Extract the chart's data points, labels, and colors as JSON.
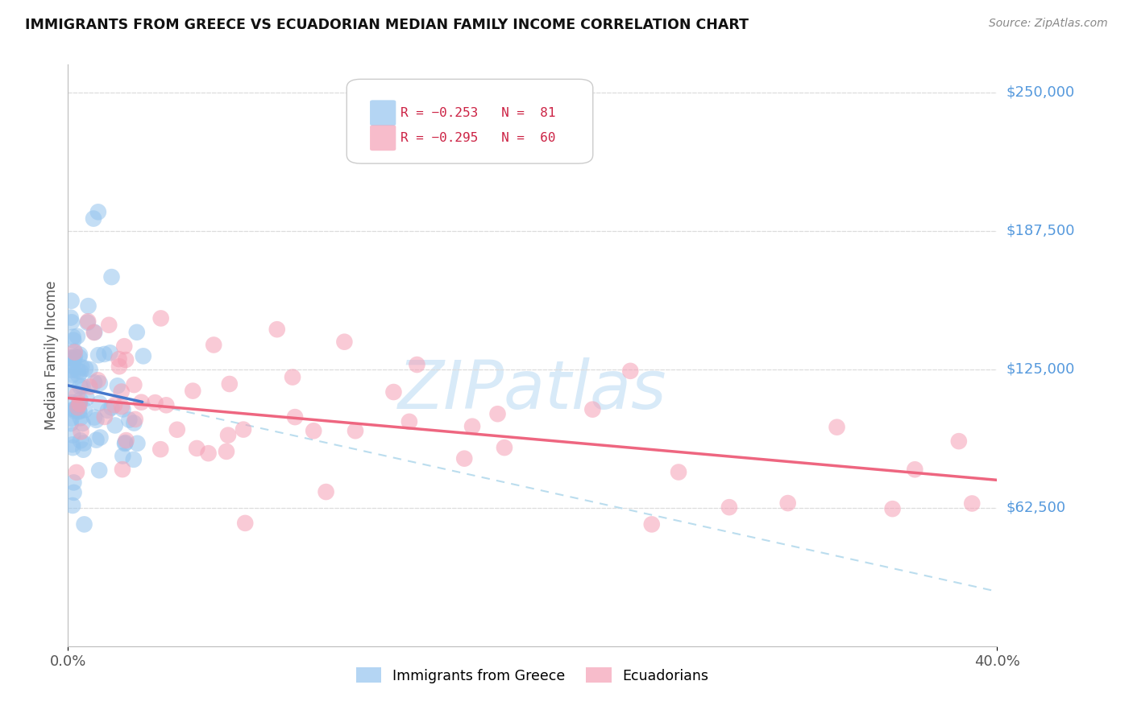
{
  "title": "IMMIGRANTS FROM GREECE VS ECUADORIAN MEDIAN FAMILY INCOME CORRELATION CHART",
  "source": "Source: ZipAtlas.com",
  "ylabel": "Median Family Income",
  "xlim": [
    0.0,
    0.4
  ],
  "ylim": [
    0,
    262500
  ],
  "greece_R": -0.253,
  "greece_N": 81,
  "ecuador_R": -0.295,
  "ecuador_N": 60,
  "greece_color": "#94C4EE",
  "ecuador_color": "#F5A0B5",
  "greece_line_color": "#4477CC",
  "ecuador_line_color": "#EE6680",
  "dashed_line_color": "#BBDDEE",
  "background_color": "#FFFFFF",
  "watermark_color": "#D8EAF8",
  "right_label_color": "#5599DD",
  "ytick_positions": [
    62500,
    125000,
    187500,
    250000
  ],
  "ytick_labels": [
    "$62,500",
    "$125,000",
    "$187,500",
    "$250,000"
  ],
  "grid_color": "#DDDDDD"
}
